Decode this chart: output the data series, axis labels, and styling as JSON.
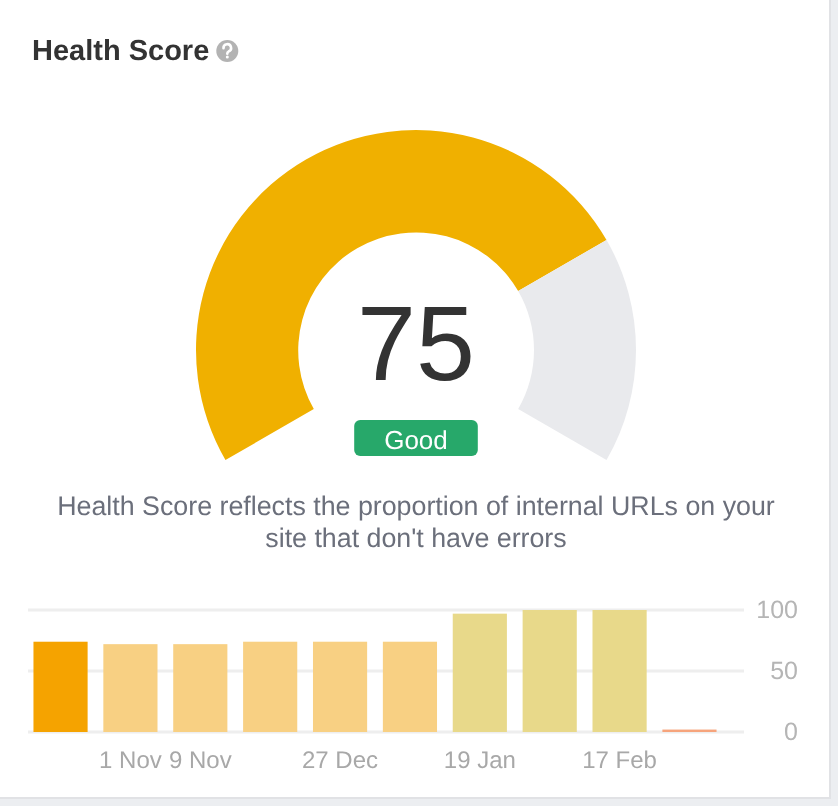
{
  "chart_data": [
    {
      "type": "donut",
      "title": "Health Score",
      "categories": [
        null,
        null
      ],
      "values": [
        75,
        25
      ],
      "colors": [
        "#f0b000",
        "#e9eaed"
      ],
      "value_labels": [
        "75",
        null
      ],
      "annotations": [
        "Good",
        "Health Score reflects the proportion of internal URLs on your site that don't have errors"
      ]
    },
    {
      "type": "bar",
      "categories": [
        null,
        "1 Nov",
        "9 Nov",
        null,
        "27 Dec",
        null,
        "19 Jan",
        null,
        "17 Feb",
        null
      ],
      "values": [
        74,
        72,
        72,
        74,
        74,
        74,
        97,
        100,
        100,
        2
      ],
      "colors": [
        "#f5a300",
        "#f8d083",
        "#f8d083",
        "#f8d083",
        "#f8d083",
        "#f8d083",
        "#e8d98a",
        "#e8d98a",
        "#e8d98a",
        "#f6a47c"
      ],
      "ylim": [
        0,
        100
      ],
      "yticks": [
        0,
        50,
        100
      ],
      "grid": "y"
    }
  ]
}
